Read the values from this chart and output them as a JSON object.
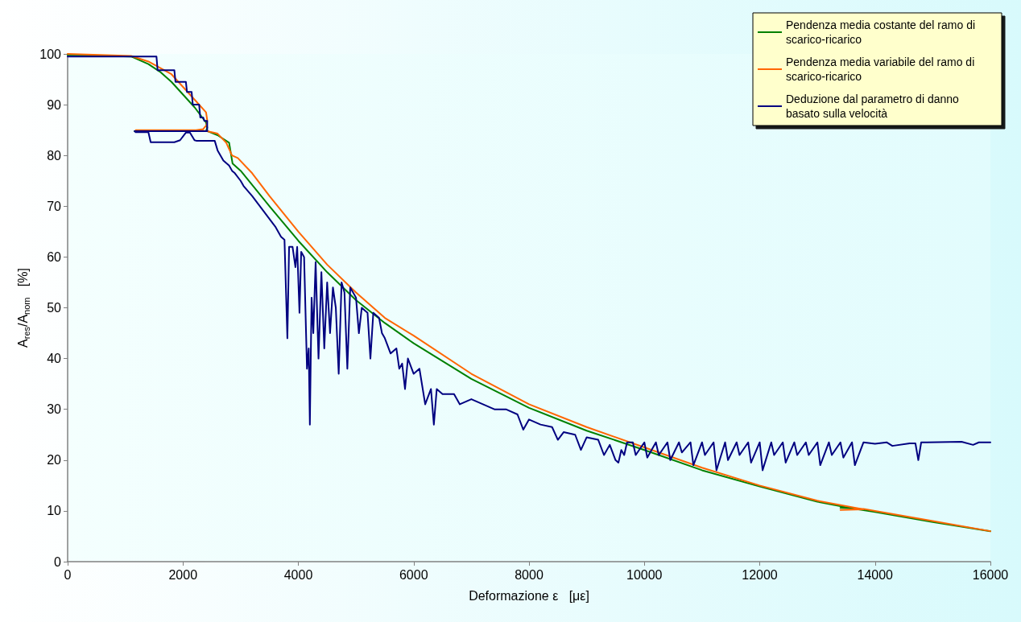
{
  "chart_data": {
    "type": "line",
    "xlabel": "Deformazione ε   [με]",
    "ylabel": "A$_{res}$/A$_{nom}$   [%]",
    "xlim": [
      0,
      16000
    ],
    "xticks": [
      0,
      2000,
      4000,
      6000,
      8000,
      10000,
      12000,
      14000,
      16000
    ],
    "ylim": [
      0,
      100
    ],
    "yticks": [
      0,
      10,
      20,
      30,
      40,
      50,
      60,
      70,
      80,
      90,
      100
    ],
    "grid": false,
    "legend": "top right",
    "marker": "none",
    "line_style": "solid",
    "series": [
      {
        "name": "Pendenza media costante del ramo di scarico-ricarico",
        "color": "#008000",
        "x": [
          0,
          1100,
          1400,
          1600,
          1800,
          2000,
          2200,
          2400,
          2420,
          2400,
          1160,
          2420,
          2600,
          2800,
          2860,
          3000,
          3500,
          4000,
          4500,
          5000,
          5500,
          6000,
          7000,
          8000,
          9000,
          10000,
          11000,
          12000,
          13000,
          13600,
          13400,
          13600,
          14000,
          15000,
          16000
        ],
        "values": [
          99.8,
          99.5,
          98,
          96.5,
          94.5,
          92,
          89.5,
          86.5,
          85.5,
          84.8,
          84.8,
          84.8,
          84,
          82.5,
          78.4,
          77,
          70,
          63.2,
          57,
          51.5,
          47,
          43,
          36,
          30.3,
          25.8,
          22,
          18,
          14.8,
          11.8,
          10.5,
          10.6,
          10.5,
          9.8,
          7.8,
          6
        ]
      },
      {
        "name": "Pendenza media variabile del ramo di scarico-ricarico",
        "color": "#ff6600",
        "x": [
          0,
          1100,
          1400,
          1800,
          2000,
          2200,
          2400,
          2420,
          2410,
          2350,
          2100,
          1180,
          2300,
          2450,
          2600,
          2750,
          2850,
          2950,
          3200,
          3500,
          4000,
          4500,
          5000,
          5500,
          6000,
          7000,
          8000,
          9000,
          10000,
          11000,
          12000,
          13000,
          13800,
          13400,
          13800,
          14000,
          15000,
          16000
        ],
        "values": [
          100,
          99.6,
          98.5,
          96,
          93.5,
          91,
          88.5,
          87,
          86,
          85.2,
          84.8,
          85,
          85,
          84.7,
          84.3,
          82.5,
          80,
          79.5,
          76.5,
          72,
          65,
          58.5,
          53,
          48,
          44.5,
          37,
          31,
          26.5,
          22.5,
          18.5,
          15,
          12,
          10.3,
          10.2,
          10.4,
          10,
          8,
          6
        ]
      },
      {
        "name": "Deduzione dal parametro di danno basato sulla velocità",
        "color": "#000080",
        "x": [
          0,
          1540,
          1560,
          1850,
          1870,
          2050,
          2070,
          2150,
          2170,
          2280,
          2300,
          2350,
          2370,
          2420,
          2420,
          1160,
          1180,
          1400,
          1440,
          1850,
          1950,
          2050,
          2120,
          2200,
          2230,
          2550,
          2600,
          2650,
          2700,
          2800,
          2850,
          2900,
          3000,
          3050,
          3200,
          3400,
          3600,
          3700,
          3760,
          3810,
          3840,
          3900,
          3950,
          3980,
          4020,
          4050,
          4100,
          4150,
          4180,
          4200,
          4230,
          4260,
          4300,
          4350,
          4400,
          4450,
          4500,
          4550,
          4600,
          4650,
          4700,
          4750,
          4800,
          4850,
          4900,
          5000,
          5050,
          5100,
          5200,
          5250,
          5300,
          5400,
          5450,
          5500,
          5600,
          5700,
          5750,
          5800,
          5850,
          5900,
          6000,
          6100,
          6200,
          6300,
          6350,
          6400,
          6500,
          6700,
          6800,
          7000,
          7200,
          7400,
          7600,
          7800,
          7900,
          8000,
          8200,
          8400,
          8500,
          8600,
          8800,
          8900,
          9000,
          9200,
          9300,
          9400,
          9500,
          9550,
          9600,
          9650,
          9700,
          9800,
          9850,
          10000,
          10050,
          10200,
          10250,
          10400,
          10450,
          10600,
          10650,
          10800,
          10850,
          11000,
          11050,
          11200,
          11250,
          11400,
          11450,
          11600,
          11650,
          11800,
          11850,
          12000,
          12050,
          12200,
          12250,
          12400,
          12450,
          12600,
          12650,
          12800,
          12850,
          13000,
          13050,
          13200,
          13250,
          13400,
          13450,
          13600,
          13650,
          13800,
          14000,
          14200,
          14300,
          14600,
          14700,
          14750,
          14800,
          14900,
          15500,
          15700,
          15800,
          16000
        ],
        "values": [
          99.5,
          99.5,
          96.8,
          96.8,
          94.5,
          94.5,
          92.5,
          92.5,
          90,
          90,
          87.5,
          87.5,
          86.8,
          86.8,
          84.8,
          84.8,
          84.6,
          84.6,
          82.6,
          82.6,
          83,
          84.5,
          84.5,
          83,
          82.9,
          82.9,
          81,
          80,
          79,
          78,
          77,
          76.5,
          75,
          74,
          72,
          69,
          66,
          64,
          63.4,
          44,
          62,
          62,
          58,
          62,
          49,
          61,
          60,
          38,
          42,
          27,
          52,
          45,
          59,
          40,
          57,
          42,
          55,
          45,
          54,
          50,
          37,
          55,
          53,
          38,
          54,
          52,
          45,
          50,
          49,
          40,
          49,
          48,
          45,
          44,
          41,
          42,
          38,
          39,
          34,
          40,
          37,
          38,
          31,
          34,
          27,
          34,
          33,
          33,
          31,
          32,
          31,
          30,
          30,
          29,
          26,
          28,
          27,
          26.5,
          24,
          25.5,
          25,
          22,
          24.5,
          24,
          21,
          23,
          20,
          19.5,
          22,
          21,
          23.5,
          23.5,
          21,
          23.5,
          20.5,
          23.5,
          21,
          23.5,
          20,
          23.5,
          21.5,
          23.5,
          19,
          23.5,
          21,
          23.5,
          18,
          23.5,
          20,
          23.5,
          21,
          23.5,
          19.5,
          23.5,
          18,
          23.5,
          21,
          23.5,
          19.5,
          23.5,
          21,
          23.5,
          21,
          23.5,
          19,
          23.5,
          21,
          23.5,
          20.5,
          23.5,
          19,
          23.5,
          23.2,
          23.5,
          22.8,
          23.3,
          23.3,
          20,
          23.5,
          23.5,
          23.6,
          23,
          23.5,
          23.5
        ]
      }
    ]
  }
}
